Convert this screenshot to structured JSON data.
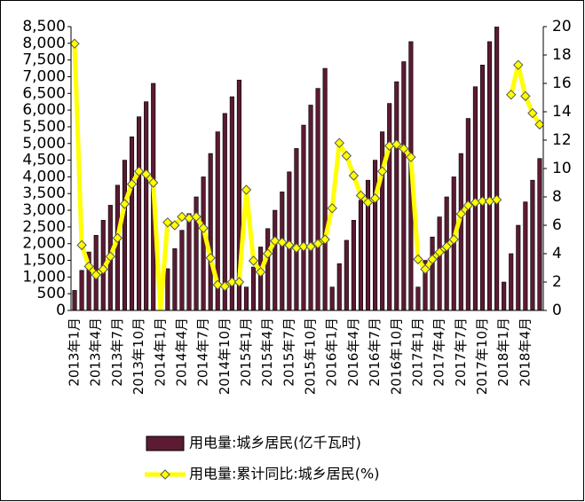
{
  "chart_data": {
    "type": "bar-line",
    "categories": [
      "2013年1月",
      null,
      null,
      "2013年4月",
      null,
      null,
      "2013年7月",
      null,
      null,
      "2013年10月",
      null,
      null,
      "2014年1月",
      null,
      null,
      "2014年4月",
      null,
      null,
      "2014年7月",
      null,
      null,
      "2014年10月",
      null,
      null,
      "2015年1月",
      null,
      null,
      "2015年4月",
      null,
      null,
      "2015年7月",
      null,
      null,
      "2015年10月",
      null,
      null,
      "2016年1月",
      null,
      null,
      "2016年4月",
      null,
      null,
      "2016年7月",
      null,
      null,
      "2016年10月",
      null,
      null,
      "2017年1月",
      null,
      null,
      "2017年4月",
      null,
      null,
      "2017年7月",
      null,
      null,
      "2017年10月",
      null,
      null,
      "2018年1月",
      null,
      null,
      "2018年4月",
      null,
      null
    ],
    "series": [
      {
        "name": "用电量:城乡居民(亿千瓦时)",
        "color": "#5c1a33",
        "type": "bar",
        "values": [
          600,
          1200,
          1750,
          2250,
          2700,
          3150,
          3750,
          4500,
          5200,
          5800,
          6250,
          6800,
          0,
          1250,
          1850,
          2400,
          2900,
          3400,
          4000,
          4700,
          5350,
          5900,
          6400,
          6900,
          700,
          1300,
          1900,
          2450,
          3000,
          3550,
          4150,
          4850,
          5550,
          6150,
          6650,
          7250,
          700,
          1400,
          2100,
          2700,
          3300,
          3900,
          4500,
          5350,
          6200,
          6850,
          7450,
          8050,
          700,
          1500,
          2200,
          2800,
          3400,
          4000,
          4700,
          5750,
          6700,
          7350,
          8050,
          8600,
          850,
          1700,
          2550,
          3250,
          3900,
          4550
        ]
      },
      {
        "name": "用电量:累计同比:城乡居民(%)",
        "color": "#ffff00",
        "type": "line",
        "axis": "y2",
        "values": [
          18.8,
          4.6,
          3.1,
          2.5,
          2.9,
          3.8,
          5.1,
          7.5,
          8.9,
          9.8,
          9.6,
          9.0,
          0,
          6.2,
          6.0,
          6.6,
          6.5,
          6.6,
          5.8,
          3.7,
          1.8,
          1.7,
          2.0,
          2.0,
          8.5,
          3.5,
          2.7,
          4.0,
          4.9,
          4.8,
          4.6,
          4.4,
          4.5,
          4.5,
          4.7,
          5.0,
          7.2,
          11.8,
          10.9,
          9.5,
          8.1,
          7.6,
          7.9,
          9.8,
          11.6,
          11.7,
          11.4,
          10.8,
          3.6,
          2.9,
          3.6,
          4.1,
          4.5,
          5.0,
          6.8,
          7.4,
          7.6,
          7.7,
          7.7,
          7.8,
          null,
          15.2,
          17.3,
          15.1,
          13.9,
          13.1
        ]
      }
    ],
    "ylim": [
      0,
      8500
    ],
    "yticks": [
      0,
      {
        "value": 500,
        "label": "500"
      },
      {
        "value": 1000,
        "label": "1,000"
      },
      {
        "value": 1500,
        "label": "1,500"
      },
      {
        "value": 2000,
        "label": "2,000"
      },
      {
        "value": 2500,
        "label": "2,500"
      },
      {
        "value": 3000,
        "label": "3,000"
      },
      {
        "value": 3500,
        "label": "3,500"
      },
      {
        "value": 4000,
        "label": "4,000"
      },
      {
        "value": 4500,
        "label": "4,500"
      },
      {
        "value": 5000,
        "label": "5,000"
      },
      {
        "value": 5500,
        "label": "5,500"
      },
      {
        "value": 6000,
        "label": "6,000"
      },
      {
        "value": 6500,
        "label": "6,500"
      },
      {
        "value": 7000,
        "label": "7,000"
      },
      {
        "value": 7500,
        "label": "7,500"
      },
      {
        "value": 8000,
        "label": "8,000"
      },
      {
        "value": 8500,
        "label": "8,500"
      }
    ],
    "y2lim": [
      0,
      20
    ],
    "y2ticks": [
      0,
      2,
      4,
      6,
      8,
      10,
      12,
      14,
      16,
      18,
      20
    ]
  }
}
